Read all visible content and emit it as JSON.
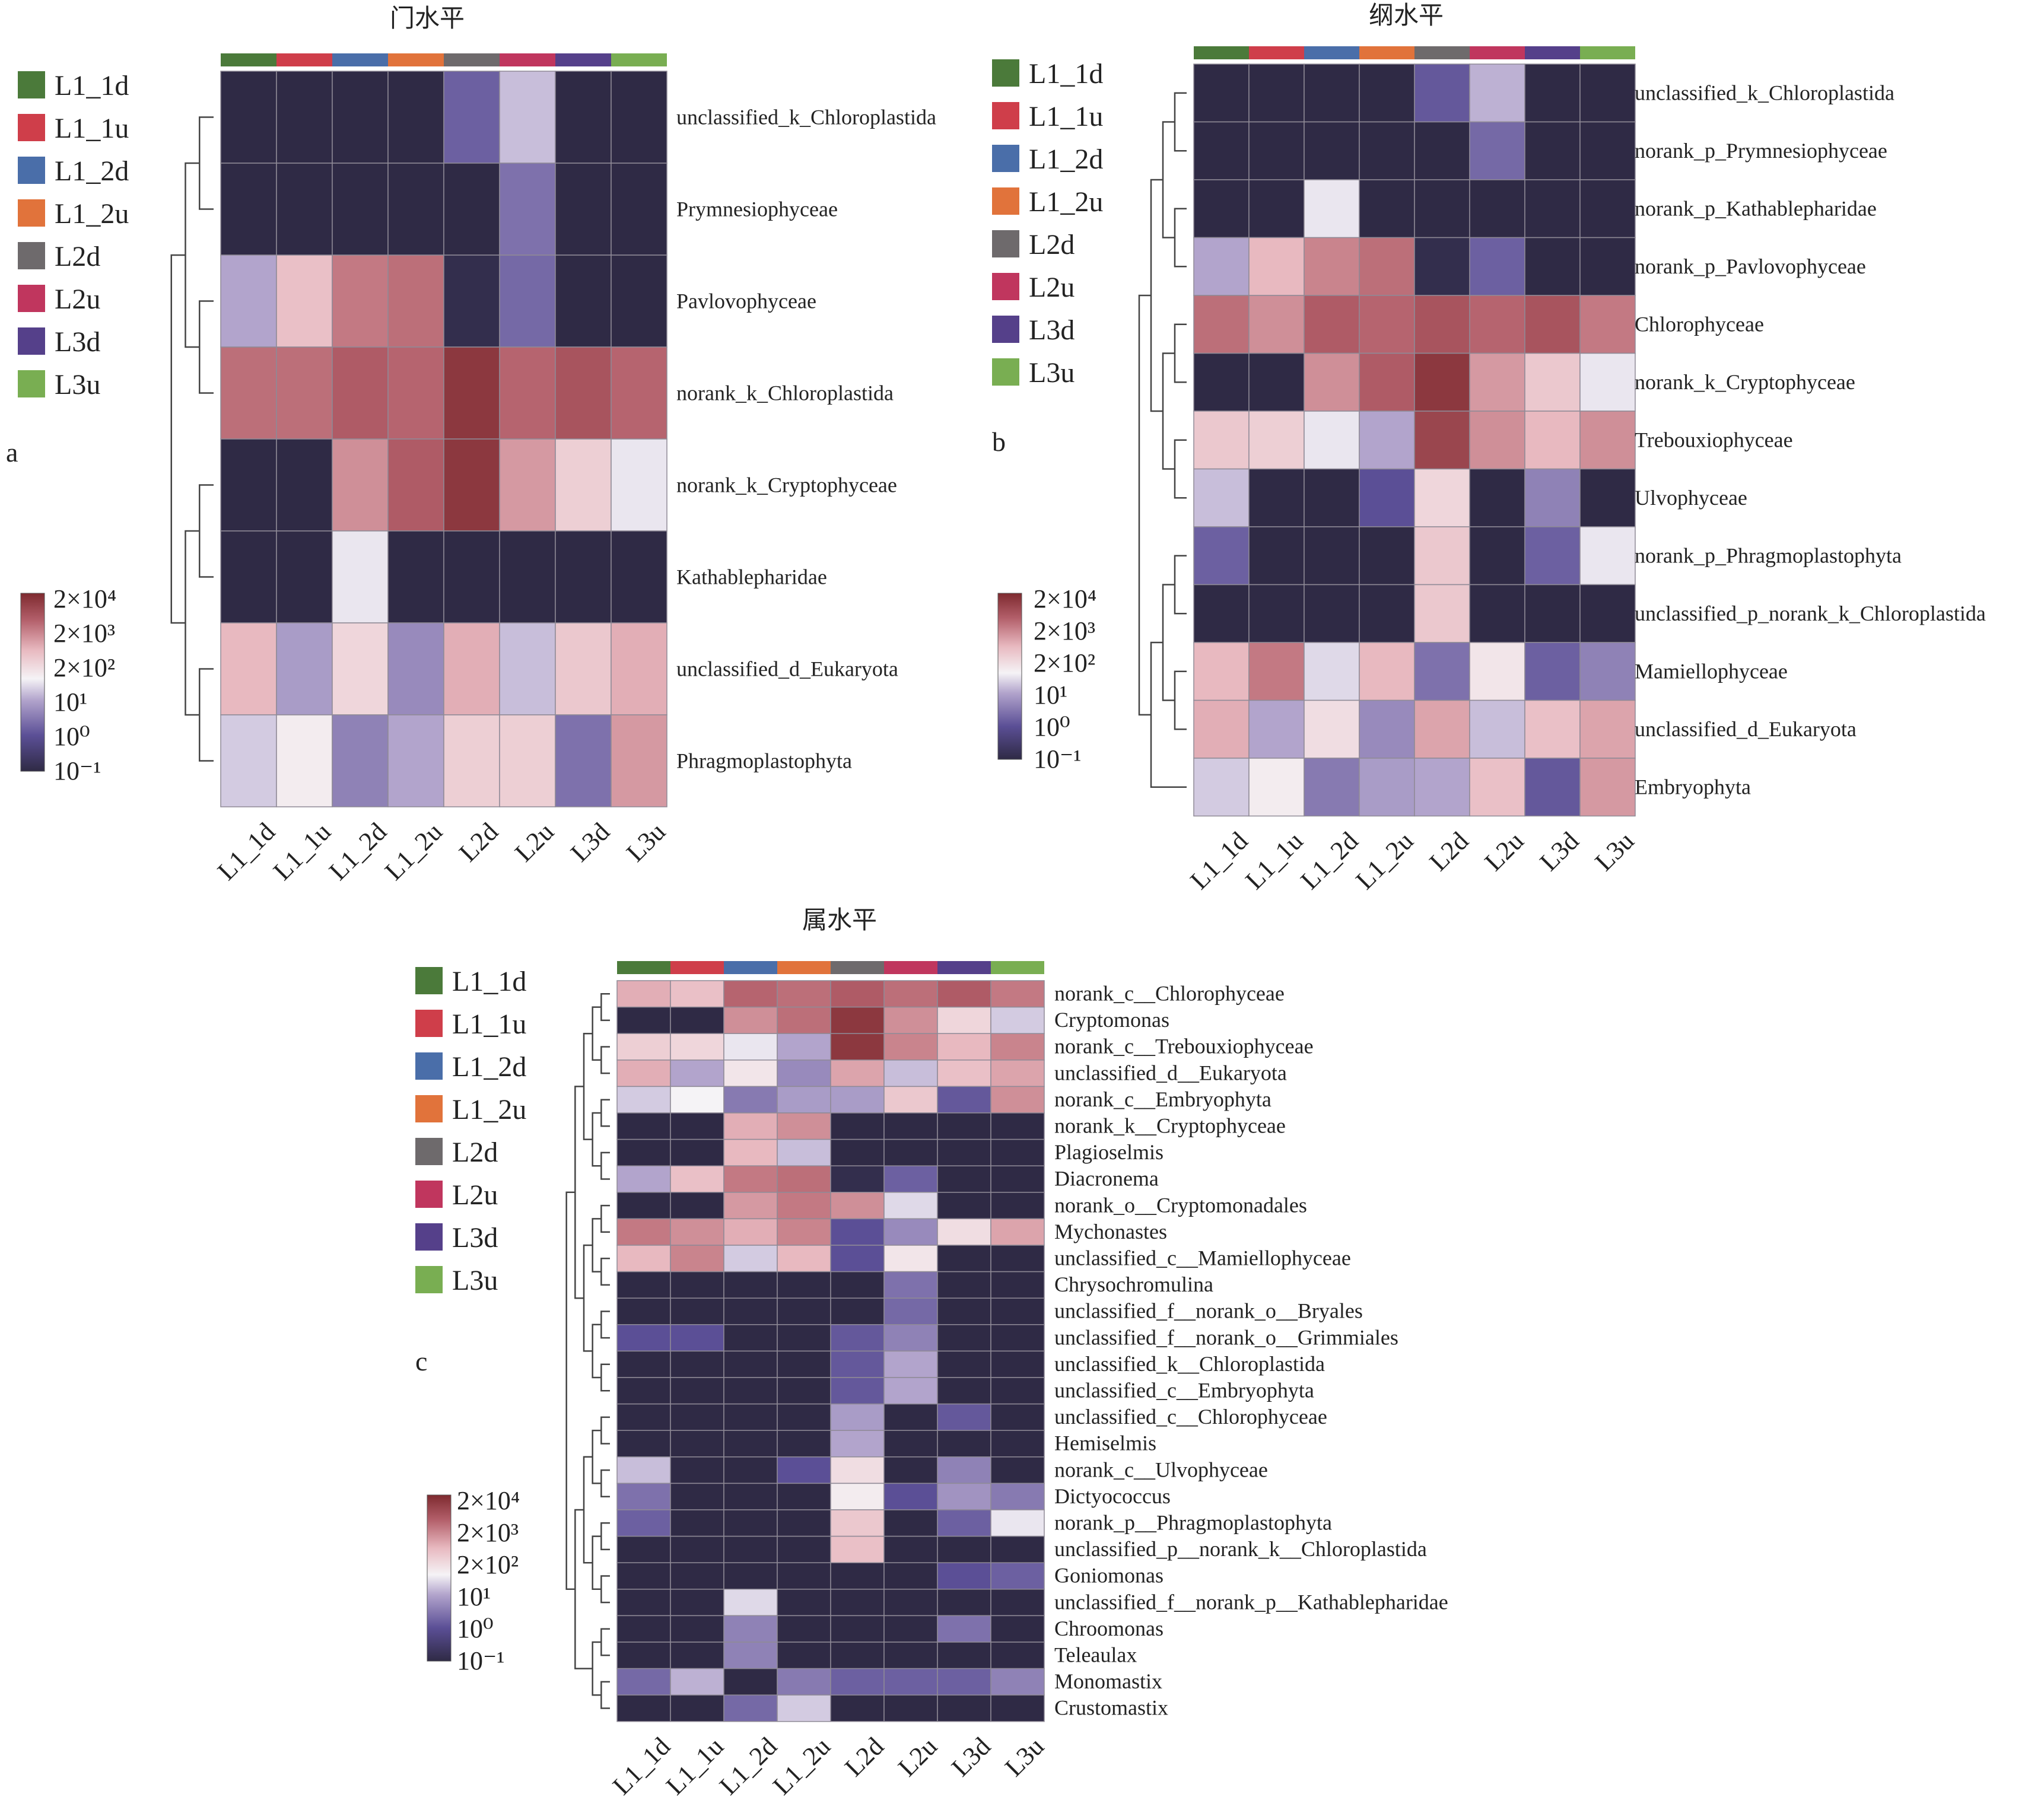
{
  "groups": [
    "L1_1d",
    "L1_1u",
    "L1_2d",
    "L1_2u",
    "L2d",
    "L2u",
    "L3d",
    "L3u"
  ],
  "group_colors": [
    "#4b7a3a",
    "#cf3e4a",
    "#4a6ea9",
    "#e1733b",
    "#6e6a6c",
    "#c0365e",
    "#55408a",
    "#79ae52"
  ],
  "scale_labels": [
    "2×10⁴",
    "2×10³",
    "2×10²",
    "10¹",
    "10⁰",
    "10⁻¹"
  ],
  "colormap": [
    "#2f2a45",
    "#5b4f96",
    "#b2a4cc",
    "#f5f3f6",
    "#e8b9c0",
    "#b35f6a",
    "#7e2a2f"
  ],
  "chart_data": [
    {
      "type": "heatmap",
      "panel": "a",
      "title": "门水平",
      "color_scale": "log10 abundance",
      "rows": [
        "unclassified_k_Chloroplastida",
        "Prymnesiophyceae",
        "Pavlovophyceae",
        "norank_k_Chloroplastida",
        "norank_k_Cryptophyceae",
        "Kathablepharidae",
        "unclassified_d_Eukaryota",
        "Phragmoplastophyta"
      ],
      "columns": [
        "L1_1d",
        "L1_1u",
        "L1_2d",
        "L1_2u",
        "L2d",
        "L2u",
        "L3d",
        "L3u"
      ],
      "values": [
        [
          0.0,
          0.0,
          0.0,
          0.0,
          1.2,
          2.2,
          0.0,
          0.0
        ],
        [
          0.0,
          0.0,
          0.0,
          0.0,
          0.0,
          1.4,
          0.0,
          0.0
        ],
        [
          2.0,
          3.3,
          4.0,
          4.1,
          0.1,
          1.3,
          0.0,
          0.0
        ],
        [
          4.1,
          4.1,
          4.3,
          4.2,
          4.8,
          4.2,
          4.4,
          4.2
        ],
        [
          0.0,
          0.0,
          3.8,
          4.3,
          4.8,
          3.7,
          3.1,
          2.5
        ],
        [
          0.0,
          0.0,
          2.5,
          0.0,
          0.0,
          0.0,
          0.0,
          0.0
        ],
        [
          3.4,
          1.9,
          3.0,
          1.7,
          3.5,
          2.2,
          3.2,
          3.5
        ],
        [
          2.3,
          2.7,
          1.6,
          2.0,
          3.1,
          3.1,
          1.4,
          3.7
        ]
      ]
    },
    {
      "type": "heatmap",
      "panel": "b",
      "title": "纲水平",
      "color_scale": "log10 abundance",
      "rows": [
        "unclassified_k_Chloroplastida",
        "norank_p_Prymnesiophyceae",
        "norank_p_Kathablepharidae",
        "norank_p_Pavlovophyceae",
        "Chlorophyceae",
        "norank_k_Cryptophyceae",
        "Trebouxiophyceae",
        "Ulvophyceae",
        "norank_p_Phragmoplastophyta",
        "unclassified_p_norank_k_Chloroplastida",
        "Mamiellophyceae",
        "unclassified_d_Eukaryota",
        "Embryophyta"
      ],
      "columns": [
        "L1_1d",
        "L1_1u",
        "L1_2d",
        "L1_2u",
        "L2d",
        "L2u",
        "L3d",
        "L3u"
      ],
      "values": [
        [
          0.0,
          0.0,
          0.0,
          0.0,
          1.1,
          2.1,
          0.0,
          0.0
        ],
        [
          0.0,
          0.0,
          0.0,
          0.0,
          0.0,
          1.3,
          0.0,
          0.0
        ],
        [
          0.0,
          0.0,
          2.5,
          0.0,
          0.0,
          0.0,
          0.0,
          0.0
        ],
        [
          2.0,
          3.4,
          3.9,
          4.1,
          0.1,
          1.2,
          0.0,
          0.0
        ],
        [
          4.1,
          3.8,
          4.3,
          4.2,
          4.4,
          4.2,
          4.4,
          4.0
        ],
        [
          0.0,
          0.0,
          3.8,
          4.3,
          4.8,
          3.7,
          3.2,
          2.5
        ],
        [
          3.2,
          3.1,
          2.5,
          2.0,
          4.6,
          3.8,
          3.4,
          3.8
        ],
        [
          2.2,
          0.0,
          0.0,
          1.0,
          3.0,
          0.0,
          1.6,
          0.0
        ],
        [
          1.2,
          0.0,
          0.0,
          0.0,
          3.2,
          0.0,
          1.2,
          2.5
        ],
        [
          0.0,
          0.0,
          0.0,
          0.0,
          3.2,
          0.0,
          0.0,
          0.0
        ],
        [
          3.4,
          4.0,
          2.4,
          3.4,
          1.4,
          2.8,
          1.2,
          1.6
        ],
        [
          3.5,
          2.0,
          2.9,
          1.7,
          3.6,
          2.2,
          3.3,
          3.6
        ],
        [
          2.3,
          2.7,
          1.5,
          1.9,
          2.0,
          3.3,
          1.1,
          3.7
        ]
      ]
    },
    {
      "type": "heatmap",
      "panel": "c",
      "title": "属水平",
      "color_scale": "log10 abundance",
      "rows": [
        "norank_c__Chlorophyceae",
        "Cryptomonas",
        "norank_c__Trebouxiophyceae",
        "unclassified_d__Eukaryota",
        "norank_c__Embryophyta",
        "norank_k__Cryptophyceae",
        "Plagioselmis",
        "Diacronema",
        "norank_o__Cryptomonadales",
        "Mychonastes",
        "unclassified_c__Mamiellophyceae",
        "Chrysochromulina",
        "unclassified_f__norank_o__Bryales",
        "unclassified_f__norank_o__Grimmiales",
        "unclassified_k__Chloroplastida",
        "unclassified_c__Embryophyta",
        "unclassified_c__Chlorophyceae",
        "Hemiselmis",
        "norank_c__Ulvophyceae",
        "Dictyococcus",
        "norank_p__Phragmoplastophyta",
        "unclassified_p__norank_k__Chloroplastida",
        "Goniomonas",
        "unclassified_f__norank_p__Kathablepharidae",
        "Chroomonas",
        "Teleaulax",
        "Monomastix",
        "Crustomastix"
      ],
      "columns": [
        "L1_1d",
        "L1_1u",
        "L1_2d",
        "L1_2u",
        "L2d",
        "L2u",
        "L3d",
        "L3u"
      ],
      "values": [
        [
          3.5,
          3.3,
          4.2,
          4.1,
          4.3,
          4.1,
          4.3,
          4.0
        ],
        [
          0.0,
          0.0,
          3.8,
          4.1,
          4.8,
          3.8,
          3.0,
          2.3
        ],
        [
          3.1,
          3.0,
          2.5,
          2.0,
          4.8,
          3.9,
          3.4,
          3.9
        ],
        [
          3.5,
          2.0,
          2.8,
          1.7,
          3.6,
          2.2,
          3.3,
          3.6
        ],
        [
          2.3,
          2.6,
          1.5,
          1.9,
          1.9,
          3.2,
          1.1,
          3.8
        ],
        [
          0.0,
          0.0,
          3.5,
          3.8,
          0.0,
          0.0,
          0.0,
          0.0
        ],
        [
          0.0,
          0.0,
          3.4,
          2.2,
          0.0,
          0.0,
          0.0,
          0.0
        ],
        [
          2.0,
          3.3,
          4.0,
          4.1,
          0.1,
          1.2,
          0.0,
          0.0
        ],
        [
          0.0,
          0.0,
          3.7,
          4.0,
          3.8,
          2.4,
          0.0,
          0.0
        ],
        [
          4.0,
          3.8,
          3.5,
          3.9,
          1.0,
          1.7,
          2.9,
          3.6
        ],
        [
          3.4,
          3.9,
          2.3,
          3.4,
          1.0,
          2.8,
          0.0,
          0.0
        ],
        [
          0.0,
          0.0,
          0.0,
          0.0,
          0.0,
          1.4,
          0.0,
          0.0
        ],
        [
          0.0,
          0.0,
          0.0,
          0.0,
          0.0,
          1.3,
          0.0,
          0.0
        ],
        [
          1.0,
          1.0,
          0.0,
          0.0,
          1.1,
          1.6,
          0.0,
          0.0
        ],
        [
          0.0,
          0.0,
          0.0,
          0.0,
          1.1,
          2.0,
          0.0,
          0.0
        ],
        [
          0.0,
          0.0,
          0.0,
          0.0,
          1.1,
          2.0,
          0.0,
          0.0
        ],
        [
          0.0,
          0.0,
          0.0,
          0.0,
          1.9,
          0.0,
          1.1,
          0.0
        ],
        [
          0.0,
          0.0,
          0.0,
          0.0,
          2.0,
          0.0,
          0.0,
          0.0
        ],
        [
          2.2,
          0.0,
          0.0,
          1.0,
          2.9,
          0.0,
          1.6,
          0.0
        ],
        [
          1.4,
          0.0,
          0.0,
          0.0,
          2.7,
          1.0,
          1.8,
          1.5
        ],
        [
          1.2,
          0.0,
          0.0,
          0.0,
          3.2,
          0.0,
          1.2,
          2.5
        ],
        [
          0.0,
          0.0,
          0.0,
          0.0,
          3.3,
          0.0,
          0.0,
          0.0
        ],
        [
          0.0,
          0.0,
          0.0,
          0.0,
          0.0,
          0.0,
          1.0,
          1.2
        ],
        [
          0.0,
          0.0,
          2.4,
          0.0,
          0.0,
          0.0,
          0.0,
          0.0
        ],
        [
          0.0,
          0.0,
          1.6,
          0.0,
          0.0,
          0.0,
          1.4,
          0.0
        ],
        [
          0.0,
          0.0,
          1.6,
          0.0,
          0.0,
          0.0,
          0.0,
          0.0
        ],
        [
          1.3,
          2.1,
          0.0,
          1.5,
          1.2,
          1.2,
          1.2,
          1.6
        ],
        [
          0.0,
          0.0,
          1.3,
          2.3,
          0.0,
          0.0,
          0.0,
          0.0
        ]
      ]
    }
  ]
}
